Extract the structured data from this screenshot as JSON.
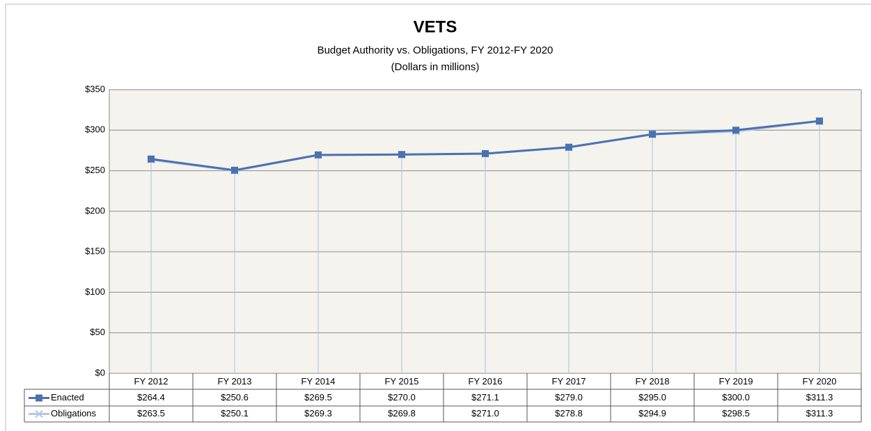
{
  "chart_data": {
    "type": "line",
    "title": "VETS",
    "subtitle": [
      "Budget Authority vs. Obligations, FY 2012-FY 2020",
      "(Dollars in  millions)"
    ],
    "categories": [
      "FY 2012",
      "FY 2013",
      "FY 2014",
      "FY 2015",
      "FY 2016",
      "FY 2017",
      "FY 2018",
      "FY 2019",
      "FY 2020"
    ],
    "series": [
      {
        "name": "Enacted",
        "color": "#4a72b0",
        "marker": "square",
        "values": [
          264.4,
          250.6,
          269.5,
          270.0,
          271.1,
          279.0,
          295.0,
          300.0,
          311.3
        ],
        "value_labels": [
          "$264.4",
          "$250.6",
          "$269.5",
          "$270.0",
          "$271.1",
          "$279.0",
          "$295.0",
          "$300.0",
          "$311.3"
        ]
      },
      {
        "name": "Obligations",
        "color": "#b4c6e4",
        "marker": "x",
        "values": [
          263.5,
          250.1,
          269.3,
          269.8,
          271.0,
          278.8,
          294.9,
          298.5,
          311.3
        ],
        "value_labels": [
          "$263.5",
          "$250.1",
          "$269.3",
          "$269.8",
          "$271.0",
          "$278.8",
          "$294.9",
          "$298.5",
          "$311.3"
        ]
      }
    ],
    "ylim": [
      0,
      350
    ],
    "yticks": [
      {
        "value": 0,
        "label": "$0"
      },
      {
        "value": 50,
        "label": "$50"
      },
      {
        "value": 100,
        "label": "$100"
      },
      {
        "value": 150,
        "label": "$150"
      },
      {
        "value": 200,
        "label": "$200"
      },
      {
        "value": 250,
        "label": "$250"
      },
      {
        "value": 300,
        "label": "$300"
      },
      {
        "value": 350,
        "label": "$350"
      }
    ],
    "grid": true,
    "legend": "table"
  }
}
